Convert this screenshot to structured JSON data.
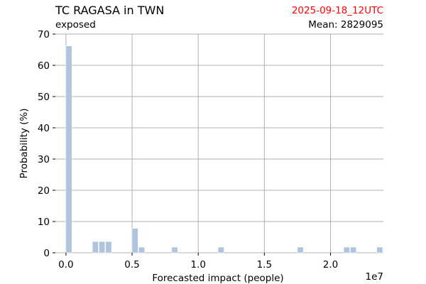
{
  "header": {
    "title": "TC RAGASA in TWN",
    "subtitle": "exposed",
    "timestamp": "2025-09-18_12UTC",
    "mean_label": "Mean: 2829095",
    "timestamp_color": "#ff0000"
  },
  "chart_data": {
    "type": "bar",
    "xlabel": "Forecasted impact (people)",
    "ylabel": "Probability (%)",
    "x_scale_label": "1e7",
    "xlim": [
      -0.08,
      2.4
    ],
    "ylim": [
      0,
      70
    ],
    "x_ticks": [
      0.0,
      0.5,
      1.0,
      1.5,
      2.0
    ],
    "x_tick_labels": [
      "0.0",
      "0.5",
      "1.0",
      "1.5",
      "2.0"
    ],
    "y_ticks": [
      0,
      10,
      20,
      30,
      40,
      50,
      60,
      70
    ],
    "y_tick_labels": [
      "0",
      "10",
      "20",
      "30",
      "40",
      "50",
      "60",
      "70"
    ],
    "grid": true,
    "bar_color": "#b0c4de",
    "bin_width": 0.05,
    "bars": [
      {
        "x": 0.0,
        "value": 66.2
      },
      {
        "x": 0.2,
        "value": 3.6
      },
      {
        "x": 0.25,
        "value": 3.6
      },
      {
        "x": 0.3,
        "value": 3.6
      },
      {
        "x": 0.5,
        "value": 7.8
      },
      {
        "x": 0.55,
        "value": 1.8
      },
      {
        "x": 0.8,
        "value": 1.8
      },
      {
        "x": 1.15,
        "value": 1.8
      },
      {
        "x": 1.75,
        "value": 1.8
      },
      {
        "x": 2.1,
        "value": 1.8
      },
      {
        "x": 2.15,
        "value": 1.8
      },
      {
        "x": 2.35,
        "value": 1.8
      }
    ]
  }
}
